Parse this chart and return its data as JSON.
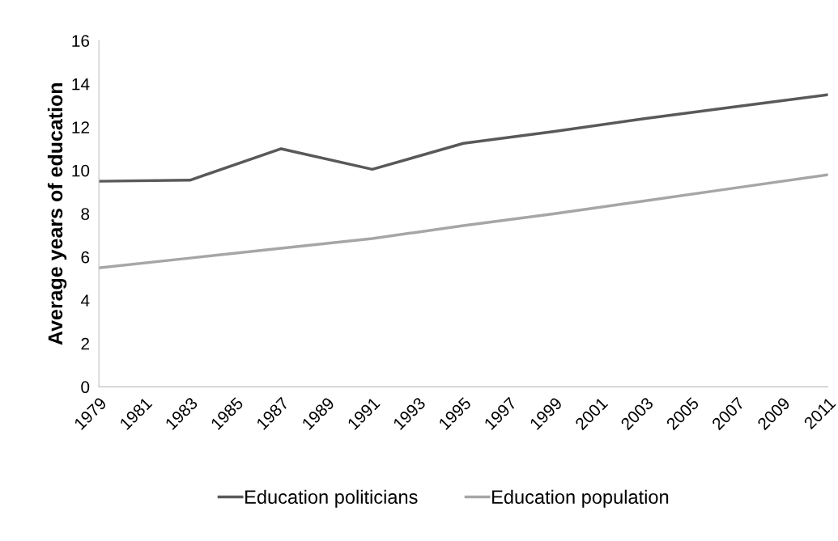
{
  "chart_data": {
    "type": "line",
    "ylabel": "Average years of education",
    "x": [
      1979,
      1983,
      1987,
      1991,
      1995,
      1999,
      2003,
      2007,
      2011
    ],
    "series": [
      {
        "name": "Education politicians",
        "color": "#595959",
        "values": [
          9.5,
          9.55,
          11.0,
          10.05,
          11.25,
          11.8,
          12.4,
          12.95,
          13.5
        ]
      },
      {
        "name": "Education population",
        "color": "#a6a6a6",
        "values": [
          5.5,
          5.95,
          6.4,
          6.85,
          7.45,
          8.0,
          8.6,
          9.2,
          9.8
        ]
      }
    ],
    "xlim": [
      1979,
      2011
    ],
    "xticks": [
      1979,
      1981,
      1983,
      1985,
      1987,
      1989,
      1991,
      1993,
      1995,
      1997,
      1999,
      2001,
      2003,
      2005,
      2007,
      2009,
      2011
    ],
    "ylim": [
      0,
      16
    ],
    "yticks": [
      0,
      2,
      4,
      6,
      8,
      10,
      12,
      14,
      16
    ],
    "grid": false,
    "legend": "bottom",
    "marker": "none",
    "line_style": "solid"
  }
}
